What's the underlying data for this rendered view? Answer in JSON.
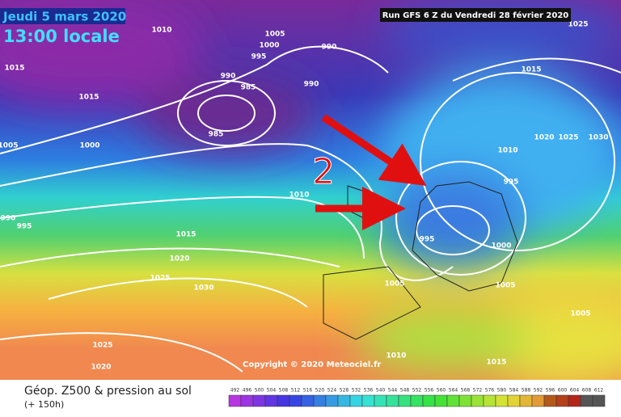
{
  "header": {
    "date": "Jeudi 5 mars 2020",
    "time": "13:00 locale",
    "run": "Run GFS 6 Z du Vendredi 28 février 2020"
  },
  "annotation": "2",
  "isobar_labels": [
    "1010",
    "1005",
    "1000",
    "995",
    "990",
    "1015",
    "990",
    "985",
    "990",
    "1015",
    "985",
    "1000",
    "1005",
    "1010",
    "1015",
    "1010",
    "1020",
    "1025",
    "1030",
    "995",
    "990",
    "995",
    "1015",
    "995",
    "1000",
    "1020",
    "1025",
    "1030",
    "1005",
    "1005",
    "1005",
    "1025",
    "1020",
    "1010",
    "1015",
    "1025"
  ],
  "copyright": "Copyright © 2020 Meteociel.fr",
  "footer": {
    "title": "Géop. Z500 & pression au sol",
    "subtitle": "(+ 150h)"
  },
  "legend": {
    "values": [
      492,
      496,
      500,
      504,
      508,
      512,
      516,
      520,
      524,
      528,
      532,
      536,
      540,
      544,
      548,
      552,
      556,
      560,
      564,
      568,
      572,
      576,
      580,
      584,
      588,
      592,
      596,
      600,
      604,
      608,
      612
    ]
  }
}
